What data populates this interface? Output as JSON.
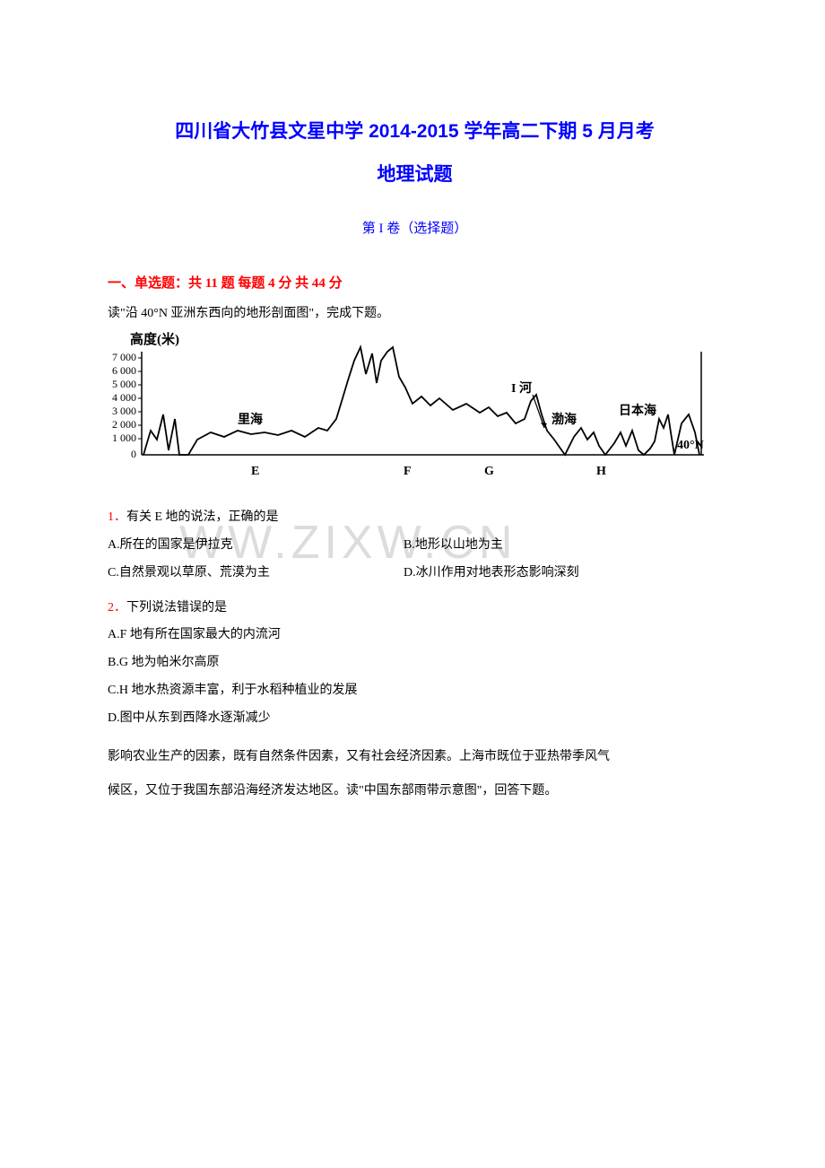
{
  "title": {
    "main": "四川省大竹县文星中学 2014-2015 学年高二下期 5 月月考",
    "sub": "地理试题",
    "section": "第 I 卷（选择题）"
  },
  "section_header": "一、单选题：共 11 题 每题 4 分 共 44 分",
  "intro1": "读\"沿 40°N 亚洲东西向的地形剖面图\"，完成下题。",
  "chart": {
    "ylabel": "高度(米)",
    "yticks": [
      "7 000",
      "6 000",
      "5 000",
      "4 000",
      "3 000",
      "2 000",
      "1 000",
      "0"
    ],
    "ylim": [
      0,
      7000
    ],
    "xlabels": [
      "E",
      "F",
      "G",
      "H"
    ],
    "annotations": {
      "lihai": "里海",
      "ihe": "I 河",
      "bohai": "渤海",
      "ribenhai": "日本海",
      "lat": "40°N"
    },
    "line_color": "#000000",
    "background": "#ffffff",
    "profile_points": [
      [
        40,
        135
      ],
      [
        48,
        108
      ],
      [
        55,
        118
      ],
      [
        62,
        90
      ],
      [
        68,
        130
      ],
      [
        75,
        95
      ],
      [
        80,
        135
      ],
      [
        90,
        135
      ],
      [
        100,
        118
      ],
      [
        115,
        110
      ],
      [
        130,
        115
      ],
      [
        145,
        108
      ],
      [
        160,
        112
      ],
      [
        175,
        110
      ],
      [
        190,
        113
      ],
      [
        205,
        108
      ],
      [
        220,
        115
      ],
      [
        235,
        105
      ],
      [
        245,
        108
      ],
      [
        255,
        95
      ],
      [
        262,
        72
      ],
      [
        268,
        52
      ],
      [
        275,
        30
      ],
      [
        282,
        15
      ],
      [
        288,
        45
      ],
      [
        295,
        22
      ],
      [
        300,
        55
      ],
      [
        305,
        30
      ],
      [
        312,
        20
      ],
      [
        318,
        15
      ],
      [
        325,
        48
      ],
      [
        332,
        60
      ],
      [
        340,
        78
      ],
      [
        350,
        70
      ],
      [
        360,
        80
      ],
      [
        370,
        72
      ],
      [
        385,
        85
      ],
      [
        400,
        78
      ],
      [
        415,
        88
      ],
      [
        425,
        82
      ],
      [
        435,
        92
      ],
      [
        445,
        88
      ],
      [
        455,
        100
      ],
      [
        465,
        95
      ],
      [
        472,
        75
      ],
      [
        478,
        68
      ],
      [
        484,
        90
      ],
      [
        490,
        108
      ],
      [
        498,
        118
      ],
      [
        510,
        135
      ],
      [
        520,
        115
      ],
      [
        528,
        105
      ],
      [
        535,
        118
      ],
      [
        542,
        110
      ],
      [
        548,
        125
      ],
      [
        555,
        135
      ],
      [
        565,
        122
      ],
      [
        572,
        110
      ],
      [
        578,
        125
      ],
      [
        585,
        108
      ],
      [
        592,
        130
      ],
      [
        598,
        135
      ],
      [
        605,
        128
      ],
      [
        610,
        120
      ],
      [
        615,
        95
      ],
      [
        620,
        105
      ],
      [
        625,
        90
      ],
      [
        628,
        110
      ],
      [
        632,
        135
      ],
      [
        640,
        100
      ],
      [
        648,
        90
      ],
      [
        655,
        110
      ],
      [
        660,
        135
      ]
    ]
  },
  "q1": {
    "num": "1．",
    "text": "有关 E 地的说法，正确的是",
    "options": {
      "A": "A.所在的国家是伊拉克",
      "B": "B.地形以山地为主",
      "C": "C.自然景观以草原、荒漠为主",
      "D": "D.冰川作用对地表形态影响深刻"
    }
  },
  "q2": {
    "num": "2．",
    "text": "下列说法错误的是",
    "options": {
      "A": "A.F 地有所在国家最大的内流河",
      "B": "B.G 地为帕米尔高原",
      "C": "C.H 地水热资源丰富，利于水稻种植业的发展",
      "D": "D.图中从东到西降水逐渐减少"
    }
  },
  "intro2a": "影响农业生产的因素，既有自然条件因素，又有社会经济因素。上海市既位于亚热带季风气",
  "intro2b": "候区，又位于我国东部沿海经济发达地区。读\"中国东部雨带示意图\"，回答下题。",
  "watermark": "WW.ZIXW.CN"
}
